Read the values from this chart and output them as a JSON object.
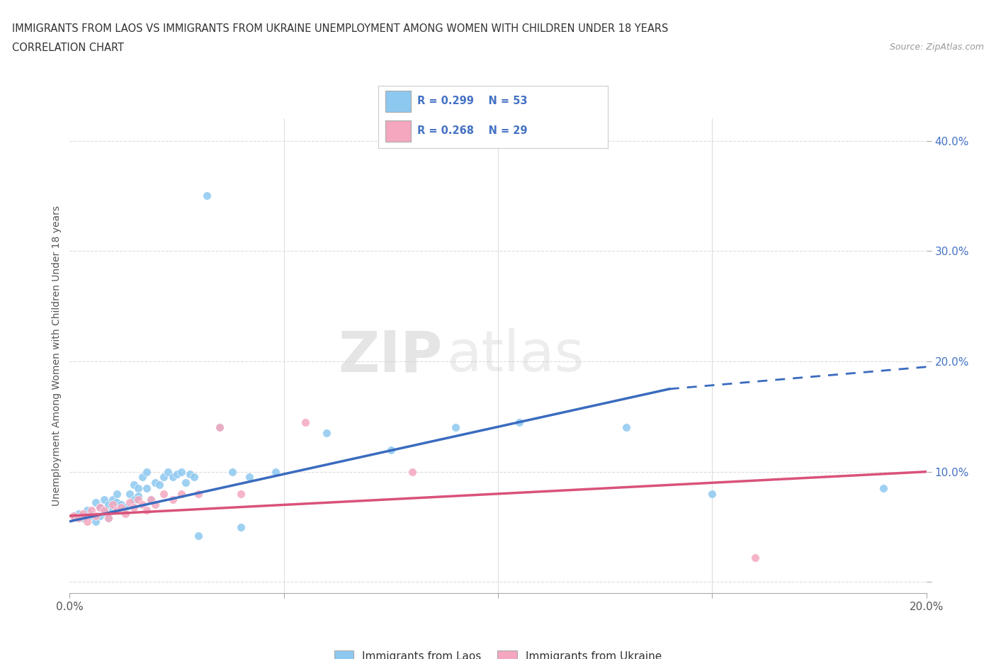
{
  "title_line1": "IMMIGRANTS FROM LAOS VS IMMIGRANTS FROM UKRAINE UNEMPLOYMENT AMONG WOMEN WITH CHILDREN UNDER 18 YEARS",
  "title_line2": "CORRELATION CHART",
  "source": "Source: ZipAtlas.com",
  "ylabel": "Unemployment Among Women with Children Under 18 years",
  "xlim": [
    0.0,
    0.2
  ],
  "ylim": [
    -0.01,
    0.42
  ],
  "xticks": [
    0.0,
    0.05,
    0.1,
    0.15,
    0.2
  ],
  "yticks": [
    0.0,
    0.1,
    0.2,
    0.3,
    0.4
  ],
  "laos_color": "#8DC8F0",
  "ukraine_color": "#F4A7BE",
  "laos_line_color": "#3A6BBF",
  "ukraine_line_color": "#D9527A",
  "watermark_zip": "ZIP",
  "watermark_atlas": "atlas",
  "background_color": "#FFFFFF",
  "grid_color": "#DDDDDD",
  "laos_x": [
    0.001,
    0.002,
    0.003,
    0.004,
    0.005,
    0.006,
    0.006,
    0.007,
    0.007,
    0.008,
    0.008,
    0.009,
    0.009,
    0.01,
    0.01,
    0.011,
    0.011,
    0.012,
    0.012,
    0.013,
    0.014,
    0.015,
    0.015,
    0.016,
    0.016,
    0.017,
    0.018,
    0.018,
    0.019,
    0.02,
    0.021,
    0.022,
    0.023,
    0.024,
    0.025,
    0.026,
    0.027,
    0.028,
    0.029,
    0.03,
    0.032,
    0.035,
    0.038,
    0.04,
    0.042,
    0.048,
    0.06,
    0.075,
    0.09,
    0.105,
    0.13,
    0.15,
    0.19
  ],
  "laos_y": [
    0.06,
    0.062,
    0.058,
    0.065,
    0.06,
    0.072,
    0.055,
    0.068,
    0.06,
    0.075,
    0.063,
    0.07,
    0.058,
    0.065,
    0.075,
    0.072,
    0.08,
    0.07,
    0.065,
    0.068,
    0.08,
    0.075,
    0.088,
    0.085,
    0.078,
    0.095,
    0.085,
    0.1,
    0.075,
    0.09,
    0.088,
    0.095,
    0.1,
    0.095,
    0.098,
    0.1,
    0.09,
    0.098,
    0.095,
    0.042,
    0.35,
    0.14,
    0.1,
    0.05,
    0.095,
    0.1,
    0.135,
    0.12,
    0.14,
    0.145,
    0.14,
    0.08,
    0.085
  ],
  "ukraine_x": [
    0.001,
    0.002,
    0.003,
    0.004,
    0.005,
    0.006,
    0.007,
    0.008,
    0.009,
    0.01,
    0.011,
    0.012,
    0.013,
    0.014,
    0.015,
    0.016,
    0.017,
    0.018,
    0.019,
    0.02,
    0.022,
    0.024,
    0.026,
    0.03,
    0.035,
    0.04,
    0.055,
    0.08,
    0.16
  ],
  "ukraine_y": [
    0.06,
    0.058,
    0.062,
    0.055,
    0.065,
    0.06,
    0.068,
    0.065,
    0.058,
    0.07,
    0.065,
    0.068,
    0.062,
    0.072,
    0.068,
    0.075,
    0.07,
    0.065,
    0.075,
    0.07,
    0.08,
    0.075,
    0.08,
    0.08,
    0.14,
    0.08,
    0.145,
    0.1,
    0.022
  ],
  "laos_line_x0": 0.0,
  "laos_line_y0": 0.055,
  "laos_line_x1": 0.14,
  "laos_line_y1": 0.175,
  "laos_line_dashed_x1": 0.2,
  "laos_line_dashed_y1": 0.195,
  "ukraine_line_x0": 0.0,
  "ukraine_line_y0": 0.06,
  "ukraine_line_x1": 0.2,
  "ukraine_line_y1": 0.1
}
